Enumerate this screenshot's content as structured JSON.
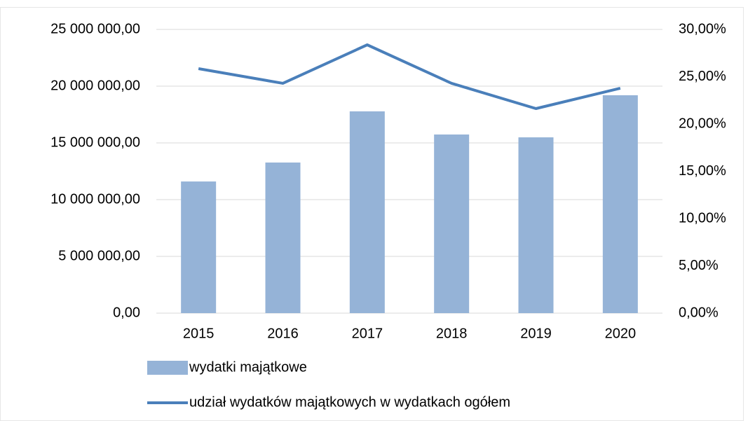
{
  "chart_data": {
    "type": "bar-line",
    "categories": [
      "2015",
      "2016",
      "2017",
      "2018",
      "2019",
      "2020"
    ],
    "series": [
      {
        "name": "wydatki majątkowe",
        "type": "bar",
        "color": "#95b3d7",
        "values": [
          11600000,
          13270000,
          17780000,
          15740000,
          15490000,
          19200000
        ]
      },
      {
        "name": "udział wydatków majątkowych w wydatkach ogółem",
        "type": "line",
        "axis": "y2",
        "color": "#4a7fba",
        "values": [
          25.85,
          24.3,
          28.37,
          24.3,
          21.63,
          23.78
        ]
      }
    ],
    "ylim": [
      0,
      25000000
    ],
    "yticks": [
      {
        "value": 0,
        "label": "0,00"
      },
      {
        "value": 5000000,
        "label": "5 000 000,00"
      },
      {
        "value": 10000000,
        "label": "10 000 000,00"
      },
      {
        "value": 15000000,
        "label": "15 000 000,00"
      },
      {
        "value": 20000000,
        "label": "20 000 000,00"
      },
      {
        "value": 25000000,
        "label": "25 000 000,00"
      }
    ],
    "y2lim": [
      0,
      30
    ],
    "y2ticks": [
      {
        "value": 0,
        "label": "0,00%"
      },
      {
        "value": 5,
        "label": "5,00%"
      },
      {
        "value": 10,
        "label": "10,00%"
      },
      {
        "value": 15,
        "label": "15,00%"
      },
      {
        "value": 20,
        "label": "20,00%"
      },
      {
        "value": 25,
        "label": "25,00%"
      },
      {
        "value": 30,
        "label": "30,00%"
      }
    ],
    "grid": true,
    "legend": "bottom-left"
  }
}
